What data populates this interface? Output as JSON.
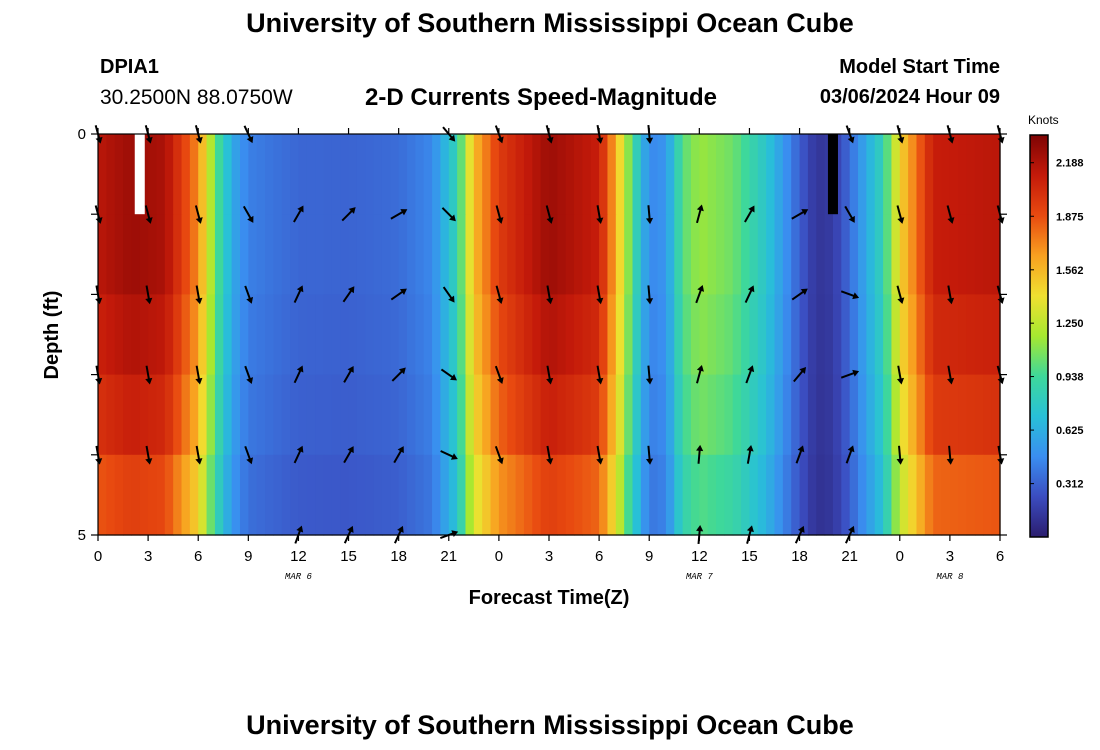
{
  "header": {
    "title": "University of Southern Mississippi Ocean Cube",
    "station": "DPIA1",
    "coords": "30.2500N  88.0750W",
    "chart_heading": "2-D Currents Speed-Magnitude",
    "model_start_label": "Model Start Time",
    "model_start_value": "03/06/2024 Hour 09"
  },
  "footer": {
    "title": "University of Southern Mississippi Ocean Cube"
  },
  "colors": {
    "scale": [
      "#2b1d6e",
      "#3b4cc0",
      "#3a8ef0",
      "#28c0d8",
      "#3ed89a",
      "#a6e830",
      "#f0e030",
      "#f8a020",
      "#e84a10",
      "#c41a0a",
      "#7e0404"
    ],
    "arrow": "#000000",
    "gap": "#ffffff",
    "dark_cell": "#000000"
  },
  "chart_data": {
    "type": "heatmap",
    "title": "2-D Currents Speed-Magnitude",
    "xlabel": "Forecast Time(Z)",
    "ylabel": "Depth (ft)",
    "x_ticks": [
      "0",
      "3",
      "6",
      "9",
      "12",
      "15",
      "18",
      "21",
      "0",
      "3",
      "6",
      "9",
      "12",
      "15",
      "18",
      "21",
      "0",
      "3",
      "6"
    ],
    "x_hours_range": [
      0,
      54
    ],
    "y_ticks": [
      "0",
      "5"
    ],
    "y_range": [
      0,
      5
    ],
    "date_labels": [
      {
        "text": "MAR 6",
        "hour": 12
      },
      {
        "text": "MAR 7",
        "hour": 36
      },
      {
        "text": "MAR 8",
        "hour": 51
      }
    ],
    "colorbar": {
      "unit": "Knots",
      "min": 0.0,
      "max": 2.35,
      "ticks": [
        "0.312",
        "0.625",
        "0.938",
        "1.250",
        "1.562",
        "1.875",
        "2.188"
      ]
    },
    "depth_layers": 5,
    "speed_surface_knots": [
      {
        "hour": 0,
        "v": 2.15
      },
      {
        "hour": 2,
        "v": 2.25
      },
      {
        "hour": 4,
        "v": 2.2
      },
      {
        "hour": 6,
        "v": 1.7
      },
      {
        "hour": 7,
        "v": 1.05
      },
      {
        "hour": 8,
        "v": 0.6
      },
      {
        "hour": 9,
        "v": 0.42
      },
      {
        "hour": 12,
        "v": 0.33
      },
      {
        "hour": 15,
        "v": 0.32
      },
      {
        "hour": 18,
        "v": 0.35
      },
      {
        "hour": 20,
        "v": 0.45
      },
      {
        "hour": 21.5,
        "v": 0.85
      },
      {
        "hour": 22.5,
        "v": 1.55
      },
      {
        "hour": 24,
        "v": 1.95
      },
      {
        "hour": 27,
        "v": 2.25
      },
      {
        "hour": 30,
        "v": 2.1
      },
      {
        "hour": 31,
        "v": 1.6
      },
      {
        "hour": 32,
        "v": 0.95
      },
      {
        "hour": 33,
        "v": 0.45
      },
      {
        "hour": 34,
        "v": 0.5
      },
      {
        "hour": 35,
        "v": 1.0
      },
      {
        "hour": 36,
        "v": 1.15
      },
      {
        "hour": 38,
        "v": 1.05
      },
      {
        "hour": 40,
        "v": 0.75
      },
      {
        "hour": 42,
        "v": 0.3
      },
      {
        "hour": 43,
        "v": 0.12
      },
      {
        "hour": 44,
        "v": 0.15
      },
      {
        "hour": 45,
        "v": 0.35
      },
      {
        "hour": 47,
        "v": 0.85
      },
      {
        "hour": 48,
        "v": 1.45
      },
      {
        "hour": 50,
        "v": 2.1
      },
      {
        "hour": 54,
        "v": 2.15
      }
    ],
    "layer_factors": [
      1.0,
      1.0,
      0.97,
      0.93,
      0.86
    ],
    "arrows": [
      {
        "hour": 0,
        "depth": 0.0,
        "angle": 165
      },
      {
        "hour": 3,
        "depth": 0.0,
        "angle": 165
      },
      {
        "hour": 6,
        "depth": 0.0,
        "angle": 165
      },
      {
        "hour": 9,
        "depth": 0.0,
        "angle": 155
      },
      {
        "hour": 21,
        "depth": 0.0,
        "angle": 140
      },
      {
        "hour": 24,
        "depth": 0.0,
        "angle": 160
      },
      {
        "hour": 27,
        "depth": 0.0,
        "angle": 165
      },
      {
        "hour": 30,
        "depth": 0.0,
        "angle": 170
      },
      {
        "hour": 33,
        "depth": 0.0,
        "angle": 175
      },
      {
        "hour": 45,
        "depth": 0.0,
        "angle": 160
      },
      {
        "hour": 48,
        "depth": 0.0,
        "angle": 165
      },
      {
        "hour": 51,
        "depth": 0.0,
        "angle": 165
      },
      {
        "hour": 54,
        "depth": 0.0,
        "angle": 165
      },
      {
        "hour": 0,
        "depth": 1.0,
        "angle": 165
      },
      {
        "hour": 3,
        "depth": 1.0,
        "angle": 165
      },
      {
        "hour": 6,
        "depth": 1.0,
        "angle": 165
      },
      {
        "hour": 9,
        "depth": 1.0,
        "angle": 150
      },
      {
        "hour": 12,
        "depth": 1.0,
        "angle": 30
      },
      {
        "hour": 15,
        "depth": 1.0,
        "angle": 45
      },
      {
        "hour": 18,
        "depth": 1.0,
        "angle": 60
      },
      {
        "hour": 21,
        "depth": 1.0,
        "angle": 135
      },
      {
        "hour": 24,
        "depth": 1.0,
        "angle": 165
      },
      {
        "hour": 27,
        "depth": 1.0,
        "angle": 165
      },
      {
        "hour": 30,
        "depth": 1.0,
        "angle": 170
      },
      {
        "hour": 33,
        "depth": 1.0,
        "angle": 175
      },
      {
        "hour": 36,
        "depth": 1.0,
        "angle": 15
      },
      {
        "hour": 39,
        "depth": 1.0,
        "angle": 30
      },
      {
        "hour": 42,
        "depth": 1.0,
        "angle": 60
      },
      {
        "hour": 45,
        "depth": 1.0,
        "angle": 150
      },
      {
        "hour": 48,
        "depth": 1.0,
        "angle": 165
      },
      {
        "hour": 51,
        "depth": 1.0,
        "angle": 165
      },
      {
        "hour": 54,
        "depth": 1.0,
        "angle": 165
      },
      {
        "hour": 0,
        "depth": 2.0,
        "angle": 170
      },
      {
        "hour": 3,
        "depth": 2.0,
        "angle": 170
      },
      {
        "hour": 6,
        "depth": 2.0,
        "angle": 170
      },
      {
        "hour": 9,
        "depth": 2.0,
        "angle": 160
      },
      {
        "hour": 12,
        "depth": 2.0,
        "angle": 25
      },
      {
        "hour": 15,
        "depth": 2.0,
        "angle": 35
      },
      {
        "hour": 18,
        "depth": 2.0,
        "angle": 55
      },
      {
        "hour": 21,
        "depth": 2.0,
        "angle": 145
      },
      {
        "hour": 24,
        "depth": 2.0,
        "angle": 165
      },
      {
        "hour": 27,
        "depth": 2.0,
        "angle": 170
      },
      {
        "hour": 30,
        "depth": 2.0,
        "angle": 170
      },
      {
        "hour": 33,
        "depth": 2.0,
        "angle": 175
      },
      {
        "hour": 36,
        "depth": 2.0,
        "angle": 20
      },
      {
        "hour": 39,
        "depth": 2.0,
        "angle": 25
      },
      {
        "hour": 42,
        "depth": 2.0,
        "angle": 55
      },
      {
        "hour": 45,
        "depth": 2.0,
        "angle": 110
      },
      {
        "hour": 48,
        "depth": 2.0,
        "angle": 165
      },
      {
        "hour": 51,
        "depth": 2.0,
        "angle": 170
      },
      {
        "hour": 54,
        "depth": 2.0,
        "angle": 165
      },
      {
        "hour": 0,
        "depth": 3.0,
        "angle": 170
      },
      {
        "hour": 3,
        "depth": 3.0,
        "angle": 170
      },
      {
        "hour": 6,
        "depth": 3.0,
        "angle": 170
      },
      {
        "hour": 9,
        "depth": 3.0,
        "angle": 160
      },
      {
        "hour": 12,
        "depth": 3.0,
        "angle": 25
      },
      {
        "hour": 15,
        "depth": 3.0,
        "angle": 30
      },
      {
        "hour": 18,
        "depth": 3.0,
        "angle": 45
      },
      {
        "hour": 21,
        "depth": 3.0,
        "angle": 125
      },
      {
        "hour": 24,
        "depth": 3.0,
        "angle": 160
      },
      {
        "hour": 27,
        "depth": 3.0,
        "angle": 170
      },
      {
        "hour": 30,
        "depth": 3.0,
        "angle": 170
      },
      {
        "hour": 33,
        "depth": 3.0,
        "angle": 175
      },
      {
        "hour": 36,
        "depth": 3.0,
        "angle": 15
      },
      {
        "hour": 39,
        "depth": 3.0,
        "angle": 20
      },
      {
        "hour": 42,
        "depth": 3.0,
        "angle": 40
      },
      {
        "hour": 45,
        "depth": 3.0,
        "angle": 70
      },
      {
        "hour": 48,
        "depth": 3.0,
        "angle": 170
      },
      {
        "hour": 51,
        "depth": 3.0,
        "angle": 170
      },
      {
        "hour": 54,
        "depth": 3.0,
        "angle": 165
      },
      {
        "hour": 0,
        "depth": 4.0,
        "angle": 170
      },
      {
        "hour": 3,
        "depth": 4.0,
        "angle": 170
      },
      {
        "hour": 6,
        "depth": 4.0,
        "angle": 170
      },
      {
        "hour": 9,
        "depth": 4.0,
        "angle": 160
      },
      {
        "hour": 12,
        "depth": 4.0,
        "angle": 25
      },
      {
        "hour": 15,
        "depth": 4.0,
        "angle": 30
      },
      {
        "hour": 18,
        "depth": 4.0,
        "angle": 30
      },
      {
        "hour": 21,
        "depth": 4.0,
        "angle": 115
      },
      {
        "hour": 24,
        "depth": 4.0,
        "angle": 160
      },
      {
        "hour": 27,
        "depth": 4.0,
        "angle": 170
      },
      {
        "hour": 30,
        "depth": 4.0,
        "angle": 170
      },
      {
        "hour": 33,
        "depth": 4.0,
        "angle": 175
      },
      {
        "hour": 36,
        "depth": 4.0,
        "angle": 5
      },
      {
        "hour": 39,
        "depth": 4.0,
        "angle": 10
      },
      {
        "hour": 42,
        "depth": 4.0,
        "angle": 20
      },
      {
        "hour": 45,
        "depth": 4.0,
        "angle": 20
      },
      {
        "hour": 48,
        "depth": 4.0,
        "angle": 175
      },
      {
        "hour": 51,
        "depth": 4.0,
        "angle": 175
      },
      {
        "hour": 54,
        "depth": 4.0,
        "angle": 170
      },
      {
        "hour": 12,
        "depth": 5.0,
        "angle": 20
      },
      {
        "hour": 15,
        "depth": 5.0,
        "angle": 25
      },
      {
        "hour": 18,
        "depth": 5.0,
        "angle": 25
      },
      {
        "hour": 21,
        "depth": 5.0,
        "angle": 70
      },
      {
        "hour": 36,
        "depth": 5.0,
        "angle": 5
      },
      {
        "hour": 39,
        "depth": 5.0,
        "angle": 15
      },
      {
        "hour": 42,
        "depth": 5.0,
        "angle": 25
      },
      {
        "hour": 45,
        "depth": 5.0,
        "angle": 25
      }
    ],
    "special_cells": [
      {
        "hour_start": 2.2,
        "hour_end": 2.8,
        "layer": 0,
        "kind": "gap"
      },
      {
        "hour_start": 43.7,
        "hour_end": 44.3,
        "layer": 0,
        "kind": "dark"
      }
    ]
  }
}
